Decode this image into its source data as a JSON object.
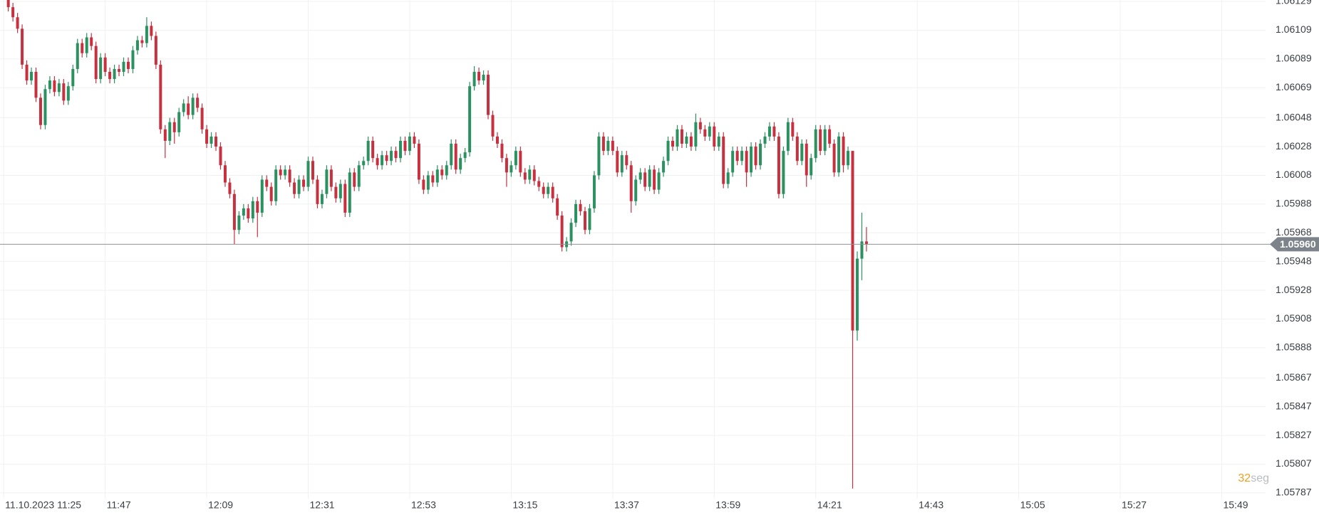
{
  "chart_data": {
    "type": "candlestick",
    "up_color": "#2b9160",
    "down_color": "#c7313f",
    "price_line_color": "#8d9298",
    "grid": true,
    "xlim": [
      684.2,
      958.5
    ],
    "ylim": [
      1.05783,
      1.0613
    ],
    "yticks": [
      1.06129,
      1.06109,
      1.06089,
      1.06069,
      1.06048,
      1.06028,
      1.06008,
      1.05988,
      1.05968,
      1.05948,
      1.05928,
      1.05908,
      1.05888,
      1.05867,
      1.05847,
      1.05827,
      1.05807,
      1.05787
    ],
    "xticks": [
      {
        "value": 685,
        "label": "11.10.2023 11:25"
      },
      {
        "value": 707,
        "label": "11:47"
      },
      {
        "value": 729,
        "label": "12:09"
      },
      {
        "value": 751,
        "label": "12:31"
      },
      {
        "value": 773,
        "label": "12:53"
      },
      {
        "value": 795,
        "label": "13:15"
      },
      {
        "value": 817,
        "label": "13:37"
      },
      {
        "value": 839,
        "label": "13:59"
      },
      {
        "value": 861,
        "label": "14:21"
      },
      {
        "value": 883,
        "label": "14:43"
      },
      {
        "value": 905,
        "label": "15:05"
      },
      {
        "value": 927,
        "label": "15:27"
      },
      {
        "value": 949,
        "label": "15:49"
      }
    ],
    "last_price": {
      "value": 1.0596,
      "label": "1.05960"
    },
    "countdown": "32",
    "countdown_unit": "seg",
    "x": [
      686,
      687,
      688,
      689,
      690,
      691,
      692,
      693,
      694,
      695,
      696,
      697,
      698,
      699,
      700,
      701,
      702,
      703,
      704,
      705,
      706,
      707,
      708,
      709,
      710,
      711,
      712,
      713,
      714,
      715,
      716,
      717,
      718,
      719,
      720,
      721,
      722,
      723,
      724,
      725,
      726,
      727,
      728,
      729,
      730,
      731,
      732,
      733,
      734,
      735,
      736,
      737,
      738,
      739,
      740,
      741,
      742,
      743,
      744,
      745,
      746,
      747,
      748,
      749,
      750,
      751,
      752,
      753,
      754,
      755,
      756,
      757,
      758,
      759,
      760,
      761,
      762,
      763,
      764,
      765,
      766,
      767,
      768,
      769,
      770,
      771,
      772,
      773,
      774,
      775,
      776,
      777,
      778,
      779,
      780,
      781,
      782,
      783,
      784,
      785,
      786,
      787,
      788,
      789,
      790,
      791,
      792,
      793,
      794,
      795,
      796,
      797,
      798,
      799,
      800,
      801,
      802,
      803,
      804,
      805,
      806,
      807,
      808,
      809,
      810,
      811,
      812,
      813,
      814,
      815,
      816,
      817,
      818,
      819,
      820,
      821,
      822,
      823,
      824,
      825,
      826,
      827,
      828,
      829,
      830,
      831,
      832,
      833,
      834,
      835,
      836,
      837,
      838,
      839,
      840,
      841,
      842,
      843,
      844,
      845,
      846,
      847,
      848,
      849,
      850,
      851,
      852,
      853,
      854,
      855,
      856,
      857,
      858,
      859,
      860,
      861,
      862,
      863,
      864,
      865,
      866,
      867,
      868,
      869,
      870,
      871,
      872
    ],
    "open": [
      1.0613,
      1.06125,
      1.06118,
      1.0611,
      1.06085,
      1.06074,
      1.0608,
      1.06062,
      1.06043,
      1.06068,
      1.06074,
      1.06066,
      1.06072,
      1.0606,
      1.0607,
      1.06082,
      1.061,
      1.06093,
      1.06104,
      1.06098,
      1.06075,
      1.0609,
      1.0608,
      1.06075,
      1.06082,
      1.0608,
      1.06087,
      1.06082,
      1.06095,
      1.06102,
      1.061,
      1.06112,
      1.06105,
      1.06085,
      1.0604,
      1.06032,
      1.06045,
      1.06038,
      1.06052,
      1.06058,
      1.0605,
      1.06062,
      1.06055,
      1.0604,
      1.0603,
      1.06035,
      1.06028,
      1.06015,
      1.06003,
      1.05995,
      1.0597,
      1.0598,
      1.05985,
      1.05978,
      1.0599,
      1.05982,
      1.06005,
      1.06,
      1.0599,
      1.06012,
      1.06008,
      1.06012,
      1.06003,
      1.05995,
      1.06005,
      1.06,
      1.06018,
      1.06005,
      1.05988,
      1.05995,
      1.06012,
      1.06,
      1.05992,
      1.06002,
      1.05982,
      1.0601,
      1.06,
      1.06015,
      1.06018,
      1.06032,
      1.0602,
      1.06015,
      1.06022,
      1.06018,
      1.06025,
      1.0602,
      1.06032,
      1.06025,
      1.06035,
      1.0603,
      1.06005,
      1.05998,
      1.06008,
      1.06003,
      1.06012,
      1.06008,
      1.06015,
      1.0603,
      1.06012,
      1.0602,
      1.06024,
      1.0607,
      1.0608,
      1.06074,
      1.06078,
      1.0605,
      1.06035,
      1.0603,
      1.0602,
      1.0601,
      1.06015,
      1.06025,
      1.0601,
      1.06005,
      1.06012,
      1.06004,
      1.06,
      1.05995,
      1.06,
      1.05992,
      1.0598,
      1.05958,
      1.05962,
      1.05975,
      1.05988,
      1.05983,
      1.0597,
      1.05985,
      1.06008,
      1.06035,
      1.06025,
      1.06032,
      1.06025,
      1.0601,
      1.06022,
      1.06015,
      1.0599,
      1.06005,
      1.0601,
      1.06,
      1.06012,
      1.05998,
      1.0601,
      1.06018,
      1.06032,
      1.06028,
      1.0604,
      1.0603,
      1.06035,
      1.06028,
      1.06045,
      1.0604,
      1.06035,
      1.06042,
      1.06028,
      1.06035,
      1.06002,
      1.0601,
      1.06025,
      1.06018,
      1.06025,
      1.0601,
      1.06028,
      1.06015,
      1.0603,
      1.06035,
      1.06042,
      1.06035,
      1.05995,
      1.06025,
      1.06045,
      1.06035,
      1.06018,
      1.0603,
      1.06008,
      1.0602,
      1.0604,
      1.06025,
      1.0604,
      1.0603,
      1.0601,
      1.06035,
      1.06015,
      1.06025,
      1.059,
      1.0595,
      1.05962
    ],
    "high": [
      1.06133,
      1.06128,
      1.06121,
      1.06113,
      1.06088,
      1.06083,
      1.06083,
      1.06065,
      1.06071,
      1.06077,
      1.06077,
      1.06075,
      1.06075,
      1.06073,
      1.06085,
      1.06103,
      1.06103,
      1.06107,
      1.06107,
      1.06101,
      1.06093,
      1.06093,
      1.06083,
      1.06085,
      1.06085,
      1.0609,
      1.0609,
      1.06098,
      1.06105,
      1.06105,
      1.06118,
      1.06115,
      1.06108,
      1.06088,
      1.06043,
      1.06048,
      1.06048,
      1.06055,
      1.06061,
      1.06063,
      1.06065,
      1.06065,
      1.06058,
      1.06043,
      1.06038,
      1.06038,
      1.06031,
      1.06018,
      1.06006,
      1.05998,
      1.05983,
      1.05988,
      1.05988,
      1.05993,
      1.05993,
      1.06008,
      1.06008,
      1.06003,
      1.06015,
      1.06015,
      1.06015,
      1.06015,
      1.06006,
      1.06008,
      1.06008,
      1.06021,
      1.06021,
      1.06008,
      1.05998,
      1.06015,
      1.06015,
      1.06003,
      1.06005,
      1.06005,
      1.06013,
      1.06013,
      1.06018,
      1.06021,
      1.06035,
      1.06035,
      1.06023,
      1.06025,
      1.06025,
      1.06028,
      1.06028,
      1.06035,
      1.06035,
      1.06038,
      1.06038,
      1.06033,
      1.06008,
      1.06011,
      1.06011,
      1.06015,
      1.06015,
      1.06018,
      1.06033,
      1.06033,
      1.06023,
      1.06027,
      1.06073,
      1.06084,
      1.06083,
      1.06081,
      1.06081,
      1.06053,
      1.06038,
      1.06033,
      1.06023,
      1.06018,
      1.06028,
      1.06028,
      1.06013,
      1.06015,
      1.06015,
      1.06007,
      1.06003,
      1.06003,
      1.06003,
      1.05995,
      1.05983,
      1.05965,
      1.05978,
      1.05991,
      1.05991,
      1.05986,
      1.05988,
      1.06011,
      1.06038,
      1.06038,
      1.06035,
      1.06035,
      1.06028,
      1.06025,
      1.06025,
      1.06018,
      1.06008,
      1.06013,
      1.06013,
      1.06015,
      1.06015,
      1.06013,
      1.06021,
      1.06035,
      1.06035,
      1.06043,
      1.06043,
      1.06038,
      1.06038,
      1.06051,
      1.06048,
      1.06043,
      1.06045,
      1.06045,
      1.06038,
      1.06038,
      1.06013,
      1.06028,
      1.06028,
      1.06028,
      1.06028,
      1.06031,
      1.06031,
      1.06033,
      1.06038,
      1.06045,
      1.06045,
      1.06038,
      1.06028,
      1.06048,
      1.06048,
      1.06038,
      1.06033,
      1.06033,
      1.06023,
      1.06043,
      1.06043,
      1.06043,
      1.06043,
      1.06033,
      1.06038,
      1.06038,
      1.06028,
      1.06025,
      1.05955,
      1.05982,
      1.05972
    ],
    "low": [
      1.06122,
      1.06115,
      1.06107,
      1.06082,
      1.06071,
      1.06071,
      1.06059,
      1.0604,
      1.0604,
      1.06065,
      1.06063,
      1.06063,
      1.06057,
      1.06057,
      1.06067,
      1.06079,
      1.0609,
      1.0609,
      1.06095,
      1.06072,
      1.06072,
      1.06077,
      1.06072,
      1.06072,
      1.06077,
      1.06077,
      1.06079,
      1.06079,
      1.06092,
      1.06097,
      1.06097,
      1.06102,
      1.06082,
      1.06037,
      1.0602,
      1.06029,
      1.0603,
      1.06035,
      1.06049,
      1.06047,
      1.06047,
      1.06052,
      1.06037,
      1.06027,
      1.06027,
      1.06025,
      1.06012,
      1.06,
      1.05992,
      1.0596,
      1.05967,
      1.05977,
      1.05975,
      1.05975,
      1.05965,
      1.05979,
      1.05997,
      1.05987,
      1.05987,
      1.06005,
      1.06005,
      1.06,
      1.05992,
      1.05992,
      1.05997,
      1.05997,
      1.06002,
      1.05985,
      1.05985,
      1.05992,
      1.05997,
      1.05989,
      1.05989,
      1.05979,
      1.05979,
      1.05997,
      1.05997,
      1.06012,
      1.06015,
      1.06017,
      1.06012,
      1.06012,
      1.06015,
      1.06015,
      1.06017,
      1.06017,
      1.06022,
      1.06022,
      1.06027,
      1.06002,
      1.05995,
      1.05995,
      1.06,
      1.06,
      1.06005,
      1.06005,
      1.06012,
      1.06009,
      1.06009,
      1.06017,
      1.06021,
      1.06067,
      1.06071,
      1.06071,
      1.06047,
      1.06032,
      1.06027,
      1.06017,
      1.06,
      1.06007,
      1.06012,
      1.06007,
      1.06002,
      1.06002,
      1.06001,
      1.05997,
      1.05992,
      1.05992,
      1.05989,
      1.05977,
      1.05955,
      1.05955,
      1.05959,
      1.05972,
      1.0598,
      1.05967,
      1.05967,
      1.05982,
      1.06005,
      1.06022,
      1.06022,
      1.06022,
      1.06007,
      1.06007,
      1.06012,
      1.05982,
      1.05987,
      1.06002,
      1.05997,
      1.05997,
      1.05995,
      1.05995,
      1.06007,
      1.06015,
      1.06025,
      1.06025,
      1.06027,
      1.06027,
      1.06025,
      1.06025,
      1.06037,
      1.06032,
      1.06032,
      1.06025,
      1.06025,
      1.05999,
      1.05999,
      1.06007,
      1.06015,
      1.06015,
      1.06,
      1.06007,
      1.06012,
      1.06012,
      1.06027,
      1.06032,
      1.06032,
      1.05992,
      1.05992,
      1.06022,
      1.06032,
      1.06015,
      1.06015,
      1.06,
      1.06005,
      1.06017,
      1.06022,
      1.06022,
      1.06027,
      1.06007,
      1.06007,
      1.0601,
      1.06012,
      1.0579,
      1.05893,
      1.05935,
      1.05955
    ],
    "close": [
      1.06125,
      1.06118,
      1.0611,
      1.06085,
      1.06074,
      1.0608,
      1.06062,
      1.06043,
      1.06068,
      1.06074,
      1.06066,
      1.06072,
      1.0606,
      1.0607,
      1.06082,
      1.061,
      1.06093,
      1.06104,
      1.06098,
      1.06075,
      1.0609,
      1.0608,
      1.06075,
      1.06082,
      1.0608,
      1.06087,
      1.06082,
      1.06095,
      1.06102,
      1.061,
      1.06112,
      1.06105,
      1.06085,
      1.0604,
      1.06032,
      1.06045,
      1.06038,
      1.06052,
      1.06058,
      1.0605,
      1.06062,
      1.06055,
      1.0604,
      1.0603,
      1.06035,
      1.06028,
      1.06015,
      1.06003,
      1.05995,
      1.0597,
      1.0598,
      1.05985,
      1.05978,
      1.0599,
      1.05982,
      1.06005,
      1.06,
      1.0599,
      1.06012,
      1.06008,
      1.06012,
      1.06003,
      1.05995,
      1.06005,
      1.06,
      1.06018,
      1.06005,
      1.05988,
      1.05995,
      1.06012,
      1.06,
      1.05992,
      1.06002,
      1.05982,
      1.0601,
      1.06,
      1.06015,
      1.06018,
      1.06032,
      1.0602,
      1.06015,
      1.06022,
      1.06018,
      1.06025,
      1.0602,
      1.06032,
      1.06025,
      1.06035,
      1.0603,
      1.06005,
      1.05998,
      1.06008,
      1.06003,
      1.06012,
      1.06008,
      1.06015,
      1.0603,
      1.06012,
      1.0602,
      1.06024,
      1.0607,
      1.0608,
      1.06074,
      1.06078,
      1.0605,
      1.06035,
      1.0603,
      1.0602,
      1.0601,
      1.06015,
      1.06025,
      1.0601,
      1.06005,
      1.06012,
      1.06004,
      1.06,
      1.05995,
      1.06,
      1.05992,
      1.0598,
      1.05958,
      1.05962,
      1.05975,
      1.05988,
      1.05983,
      1.0597,
      1.05985,
      1.06008,
      1.06035,
      1.06025,
      1.06032,
      1.06025,
      1.0601,
      1.06022,
      1.06015,
      1.0599,
      1.06005,
      1.0601,
      1.06,
      1.06012,
      1.05998,
      1.0601,
      1.06018,
      1.06032,
      1.06028,
      1.0604,
      1.0603,
      1.06035,
      1.06028,
      1.06045,
      1.0604,
      1.06035,
      1.06042,
      1.06028,
      1.06035,
      1.06002,
      1.0601,
      1.06025,
      1.06018,
      1.06025,
      1.0601,
      1.06028,
      1.06015,
      1.0603,
      1.06035,
      1.06042,
      1.06035,
      1.05995,
      1.06025,
      1.06045,
      1.06035,
      1.06018,
      1.0603,
      1.06008,
      1.0602,
      1.0604,
      1.06025,
      1.0604,
      1.0603,
      1.0601,
      1.06035,
      1.06015,
      1.06025,
      1.059,
      1.0595,
      1.05962,
      1.0596
    ]
  }
}
